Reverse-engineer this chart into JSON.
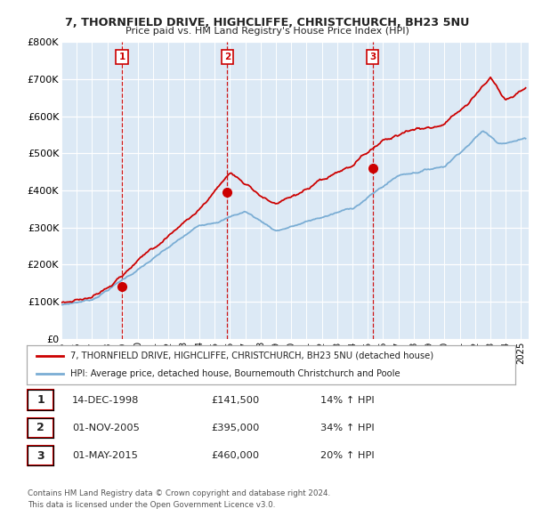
{
  "title1": "7, THORNFIELD DRIVE, HIGHCLIFFE, CHRISTCHURCH, BH23 5NU",
  "title2": "Price paid vs. HM Land Registry's House Price Index (HPI)",
  "bg_color": "#dce9f5",
  "red_line_color": "#cc0000",
  "blue_line_color": "#7aadd4",
  "marker_color": "#cc0000",
  "vline_color": "#cc0000",
  "yticks": [
    0,
    100000,
    200000,
    300000,
    400000,
    500000,
    600000,
    700000,
    800000
  ],
  "ytick_labels": [
    "£0",
    "£100K",
    "£200K",
    "£300K",
    "£400K",
    "£500K",
    "£600K",
    "£700K",
    "£800K"
  ],
  "xmin": 1995.0,
  "xmax": 2025.5,
  "ymin": 0,
  "ymax": 800000,
  "purchases": [
    {
      "year": 1998.95,
      "price": 141500,
      "label": "1"
    },
    {
      "year": 2005.83,
      "price": 395000,
      "label": "2"
    },
    {
      "year": 2015.33,
      "price": 460000,
      "label": "3"
    }
  ],
  "legend_red": "7, THORNFIELD DRIVE, HIGHCLIFFE, CHRISTCHURCH, BH23 5NU (detached house)",
  "legend_blue": "HPI: Average price, detached house, Bournemouth Christchurch and Poole",
  "table_rows": [
    {
      "num": "1",
      "date": "14-DEC-1998",
      "price": "£141,500",
      "change": "14% ↑ HPI"
    },
    {
      "num": "2",
      "date": "01-NOV-2005",
      "price": "£395,000",
      "change": "34% ↑ HPI"
    },
    {
      "num": "3",
      "date": "01-MAY-2015",
      "price": "£460,000",
      "change": "20% ↑ HPI"
    }
  ],
  "footer1": "Contains HM Land Registry data © Crown copyright and database right 2024.",
  "footer2": "This data is licensed under the Open Government Licence v3.0."
}
